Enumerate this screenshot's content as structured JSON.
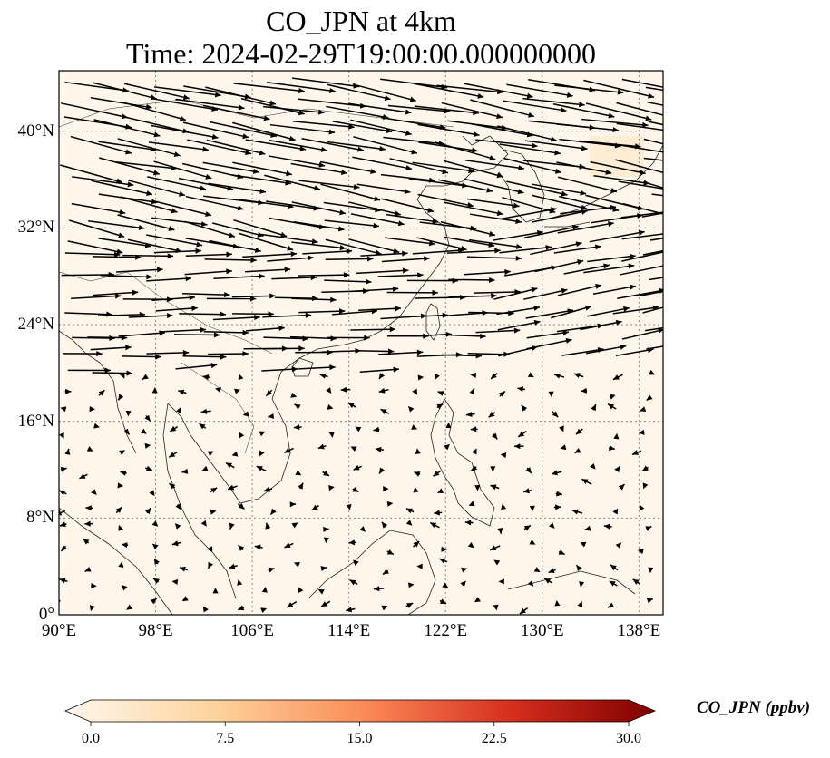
{
  "title_line1": "CO_JPN at 4km",
  "title_line2": "Time: 2024-02-29T19:00:00.000000000",
  "map": {
    "lon_range": [
      90,
      140
    ],
    "lat_range": [
      0,
      45
    ],
    "gridlines": "dotted",
    "x_ticks": [
      {
        "value": 90,
        "label": "90°E"
      },
      {
        "value": 98,
        "label": "98°E"
      },
      {
        "value": 106,
        "label": "106°E"
      },
      {
        "value": 114,
        "label": "114°E"
      },
      {
        "value": 122,
        "label": "122°E"
      },
      {
        "value": 130,
        "label": "130°E"
      },
      {
        "value": 138,
        "label": "138°E"
      }
    ],
    "y_ticks": [
      {
        "value": 0,
        "label": "0°"
      },
      {
        "value": 8,
        "label": "8°N"
      },
      {
        "value": 16,
        "label": "16°N"
      },
      {
        "value": 24,
        "label": "24°N"
      },
      {
        "value": 32,
        "label": "32°N"
      },
      {
        "value": 40,
        "label": "40°N"
      }
    ],
    "background_color": "#fef6ea",
    "wind_vectors": "westerly flow north of 20°N, weak variable flow in the tropics"
  },
  "colorbar": {
    "label": "CO_JPN (ppbv)",
    "min": 0.0,
    "max": 30.0,
    "ticks": [
      "0.0",
      "7.5",
      "15.0",
      "22.5",
      "30.0"
    ],
    "colormap": "OrRd",
    "colors": [
      "#fff7ec",
      "#fdd49e",
      "#fc8d59",
      "#d7301f",
      "#7f0000"
    ]
  }
}
